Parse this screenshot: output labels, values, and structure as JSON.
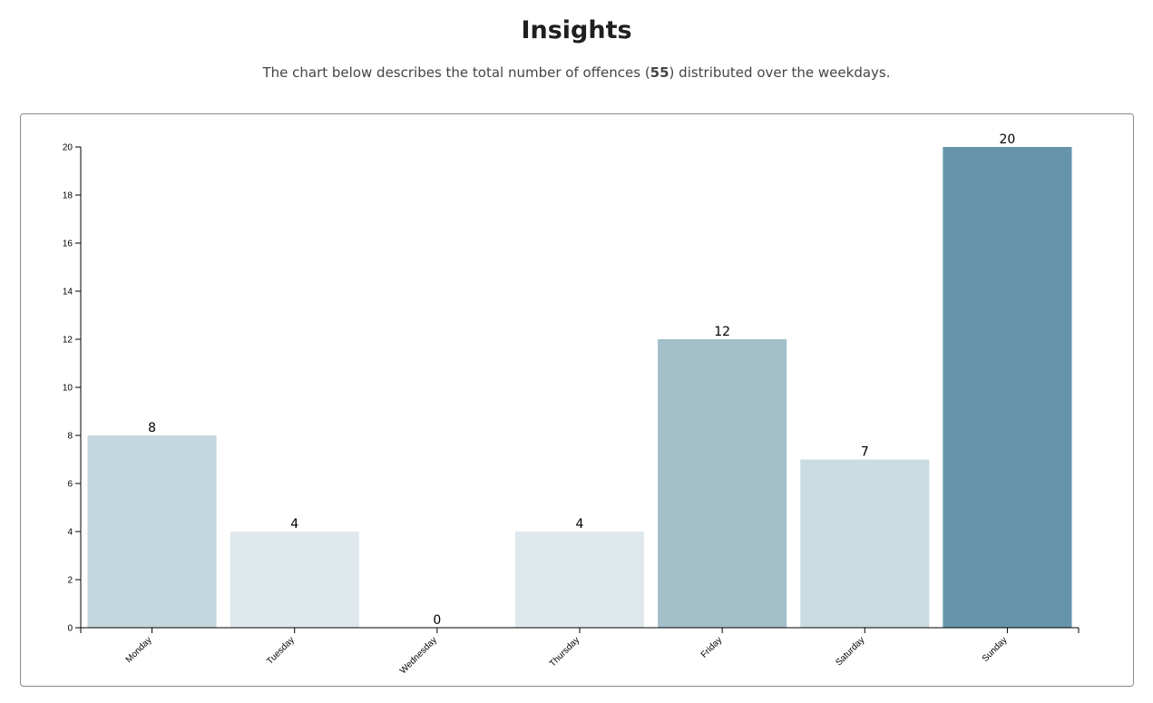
{
  "header": {
    "title": "Insights",
    "subtitle_prefix": "The chart below describes the total number of offences (",
    "subtitle_total": "55",
    "subtitle_suffix": ") distributed over the weekdays."
  },
  "chart_data": {
    "type": "bar",
    "title": "",
    "xlabel": "",
    "ylabel": "",
    "categories": [
      "Monday",
      "Tuesday",
      "Wednesday",
      "Thursday",
      "Friday",
      "Saturday",
      "Sunday"
    ],
    "values": [
      8,
      4,
      0,
      4,
      12,
      7,
      20
    ],
    "ylim": [
      0,
      20
    ],
    "yticks": [
      0,
      2,
      4,
      6,
      8,
      10,
      12,
      14,
      16,
      18,
      20
    ],
    "grid": false,
    "colors": [
      "#c2d7de",
      "#dfe8ed",
      "#dfe8ed",
      "#dfe8ed",
      "#a3bfca",
      "#cbdbe2",
      "#6695ab"
    ]
  }
}
